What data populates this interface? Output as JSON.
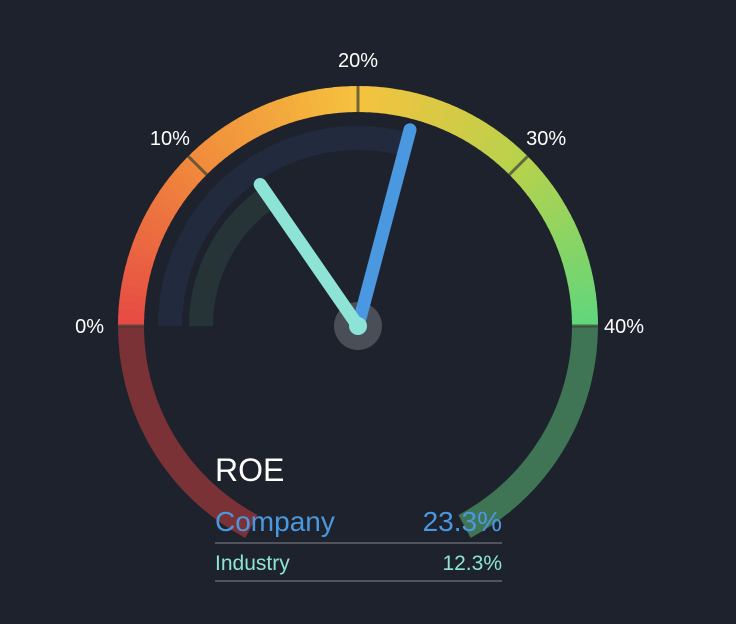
{
  "chart_data": {
    "type": "gauge",
    "title": "ROE",
    "axis": {
      "min": 0,
      "max": 40,
      "ticks": [
        0,
        10,
        20,
        30,
        40
      ],
      "tick_labels": [
        "0%",
        "10%",
        "20%",
        "30%",
        "40%"
      ]
    },
    "series": [
      {
        "name": "Company",
        "value": 23.3,
        "display": "23.3%",
        "color": "#4a98e0"
      },
      {
        "name": "Industry",
        "value": 12.3,
        "display": "12.3%",
        "color": "#8de4d6"
      }
    ]
  },
  "colors": {
    "background": "#1e222c",
    "lower_left_arc": "#7a3236",
    "lower_right_arc": "#3f7554",
    "company_track": "#222b3e",
    "industry_track": "#263337",
    "hub": "#4a4e57"
  }
}
